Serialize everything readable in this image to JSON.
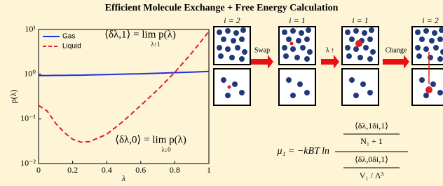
{
  "title": "Efficient Molecule Exchange + Free Energy Calculation",
  "chart_data": {
    "type": "line",
    "xlabel": "λ",
    "ylabel": "p(λ)",
    "x": [
      0,
      0.05,
      0.1,
      0.15,
      0.2,
      0.25,
      0.3,
      0.4,
      0.5,
      0.6,
      0.7,
      0.8,
      0.9,
      1
    ],
    "series": [
      {
        "name": "Gas",
        "color": "#1f2fe0",
        "dash": "solid",
        "values": [
          0.93,
          0.93,
          0.94,
          0.94,
          0.95,
          0.95,
          0.96,
          0.98,
          1.0,
          1.02,
          1.05,
          1.08,
          1.11,
          1.15
        ]
      },
      {
        "name": "Liquid",
        "color": "#e0202a",
        "dash": "dashed",
        "values": [
          0.2,
          0.15,
          0.08,
          0.05,
          0.035,
          0.03,
          0.031,
          0.045,
          0.09,
          0.2,
          0.45,
          1.1,
          3,
          9
        ]
      }
    ],
    "log_y": true,
    "xlim": [
      0,
      1
    ],
    "ylim": [
      0.01,
      10
    ],
    "xticks": [
      0,
      0.2,
      0.4,
      0.6,
      0.8,
      1
    ],
    "yticks": [
      {
        "value": 0.01,
        "label": "10⁻²"
      },
      {
        "value": 0.1,
        "label": "10⁻¹"
      },
      {
        "value": 1,
        "label": "10⁰"
      },
      {
        "value": 10,
        "label": "10¹"
      }
    ],
    "legend": "upper left",
    "annotations": [
      {
        "text": "⟨δλ,1⟩ = lim p(λ)",
        "sub": "λ↑1"
      },
      {
        "text": "⟨δλ,0⟩ = lim p(λ)",
        "sub": "λ↓0"
      }
    ]
  },
  "diagram": {
    "panels": [
      "i = 2",
      "i = 1",
      "i = 1",
      "i = 2"
    ],
    "arrows": [
      "Swap",
      "λ ↑",
      "Change"
    ],
    "formula": {
      "lhs": "μ₁ = −kBT ln",
      "num_top": "⟨δλ,1δi,1⟩",
      "num_bottom": "N₁ + 1",
      "den_top": "⟨δλ,0δi,1⟩",
      "den_bottom": "V₁ / Λ³"
    }
  }
}
